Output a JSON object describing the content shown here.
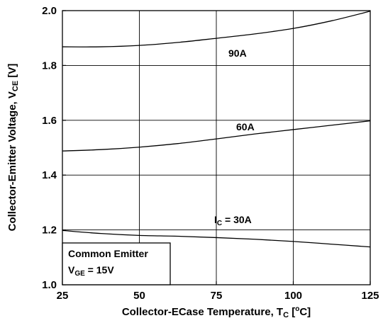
{
  "chart_data": {
    "type": "line",
    "xlabel": {
      "main": "Collector-ECase Temperature, T",
      "sub": "C",
      "tail": " [",
      "sup": "o",
      "end": "C]"
    },
    "ylabel": {
      "main": "Collector-Emitter Voltage, V",
      "sub": "CE",
      "tail": " [V]"
    },
    "xlim": [
      25,
      125
    ],
    "ylim": [
      1.0,
      2.0
    ],
    "x_ticks": [
      25,
      50,
      75,
      100,
      125
    ],
    "y_ticks": [
      1.0,
      1.2,
      1.4,
      1.6,
      1.8,
      2.0
    ],
    "x_tick_labels": [
      "25",
      "50",
      "75",
      "100",
      "125"
    ],
    "y_tick_labels": [
      "1.0",
      "1.2",
      "1.4",
      "1.6",
      "1.8",
      "2.0"
    ],
    "grid": true,
    "series": [
      {
        "name": "90A",
        "x": [
          25,
          37.5,
          50,
          62.5,
          75,
          87.5,
          100,
          112.5,
          125
        ],
        "y": [
          1.868,
          1.868,
          1.873,
          1.884,
          1.899,
          1.915,
          1.935,
          1.963,
          1.998
        ]
      },
      {
        "name": "60A",
        "x": [
          25,
          37.5,
          50,
          62.5,
          75,
          87.5,
          100,
          112.5,
          125
        ],
        "y": [
          1.488,
          1.493,
          1.502,
          1.515,
          1.532,
          1.55,
          1.566,
          1.582,
          1.598
        ]
      },
      {
        "name": "30A",
        "x": [
          25,
          37.5,
          50,
          62.5,
          75,
          87.5,
          100,
          112.5,
          125
        ],
        "y": [
          1.198,
          1.187,
          1.18,
          1.177,
          1.172,
          1.166,
          1.158,
          1.148,
          1.138
        ]
      }
    ],
    "annotations": {
      "label_90": "90A",
      "label_60": "60A",
      "label_30_prefix": "I",
      "label_30_sub": "C",
      "label_30_suffix": " = 30A",
      "legend_line1": "Common Emitter",
      "legend_line2_prefix": "V",
      "legend_line2_sub": "GE",
      "legend_line2_suffix": " = 15V"
    }
  }
}
